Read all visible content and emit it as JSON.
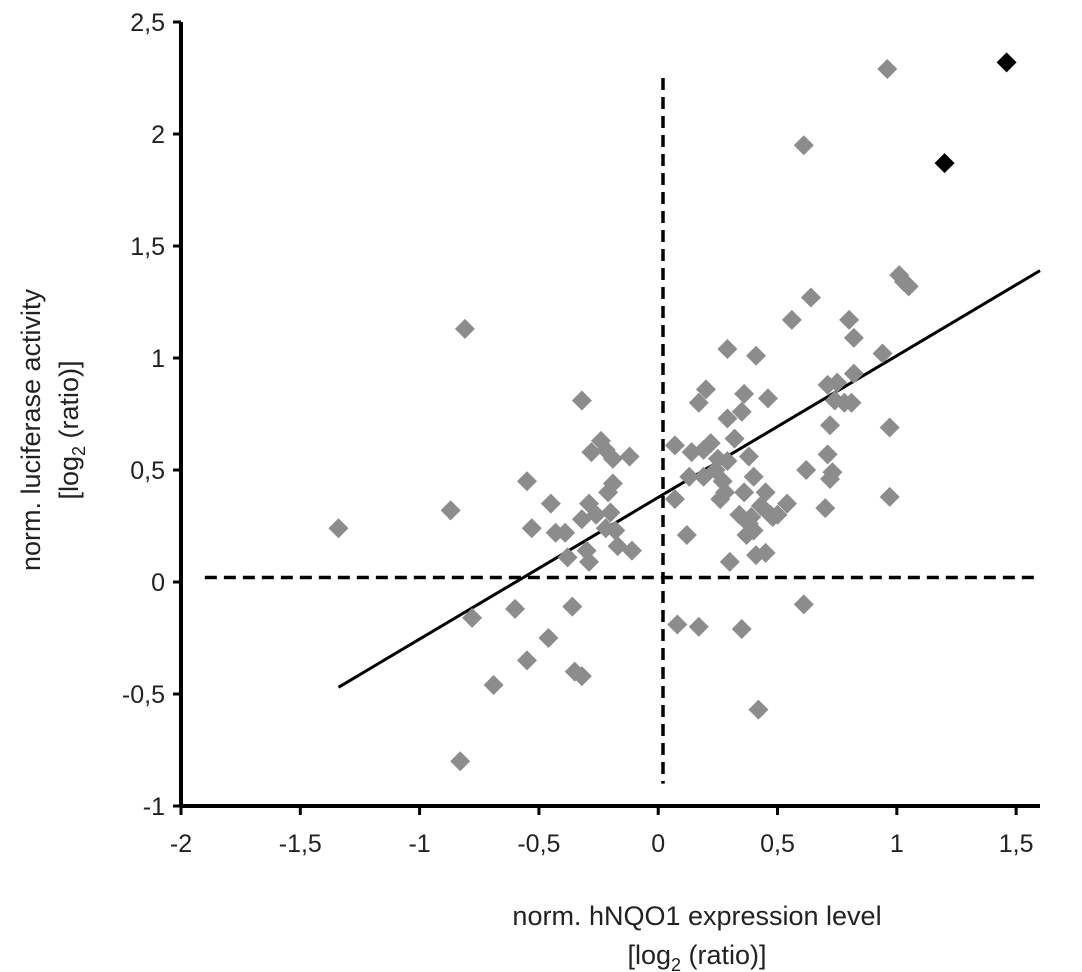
{
  "chart_data": {
    "type": "scatter",
    "xlabel_line1": "norm. hNQO1 expression level",
    "xlabel_line2_pre": "[log",
    "xlabel_line2_sub": "2",
    "xlabel_line2_post": " (ratio)]",
    "ylabel_line1": "norm. luciferase activity",
    "ylabel_line2_pre": "[log",
    "ylabel_line2_sub": "2",
    "ylabel_line2_post": " (ratio)]",
    "xlim": [
      -2,
      1.6
    ],
    "ylim": [
      -1,
      2.5
    ],
    "x_ticks": [
      -2,
      -1.5,
      -1,
      -0.5,
      0,
      0.5,
      1,
      1.5
    ],
    "x_tick_labels": [
      "-2",
      "-1,5",
      "-1",
      "-0,5",
      "0",
      "0,5",
      "1",
      "1,5"
    ],
    "y_ticks": [
      -1,
      -0.5,
      0,
      0.5,
      1,
      1.5,
      2,
      2.5
    ],
    "y_tick_labels": [
      "-1",
      "-0,5",
      "0",
      "0,5",
      "1",
      "1,5",
      "2",
      "2,5"
    ],
    "colors": {
      "grey_points": "#8c8c8c",
      "black_points": "#000000",
      "lines": "#000000"
    },
    "reference_lines": {
      "vertical": {
        "x": 0.02,
        "y_range": [
          -0.9,
          2.25
        ]
      },
      "horizontal": {
        "y": 0.02,
        "x_range": [
          -1.9,
          1.6
        ]
      }
    },
    "regression_line": {
      "x_start": -1.34,
      "y_start": -0.47,
      "x_end": 1.6,
      "y_end": 1.39
    },
    "series": [
      {
        "marker": "diamond",
        "color": "#8c8c8c",
        "points": [
          [
            -1.34,
            0.24
          ],
          [
            -0.87,
            0.32
          ],
          [
            -0.81,
            1.13
          ],
          [
            -0.78,
            -0.16
          ],
          [
            -0.83,
            -0.8
          ],
          [
            -0.69,
            -0.46
          ],
          [
            -0.6,
            -0.12
          ],
          [
            -0.55,
            -0.35
          ],
          [
            -0.55,
            0.45
          ],
          [
            -0.53,
            0.24
          ],
          [
            -0.46,
            -0.25
          ],
          [
            -0.45,
            0.35
          ],
          [
            -0.43,
            0.22
          ],
          [
            -0.39,
            0.22
          ],
          [
            -0.38,
            0.11
          ],
          [
            -0.36,
            -0.11
          ],
          [
            -0.35,
            -0.4
          ],
          [
            -0.32,
            -0.42
          ],
          [
            -0.32,
            0.81
          ],
          [
            -0.32,
            0.28
          ],
          [
            -0.3,
            0.14
          ],
          [
            -0.29,
            0.09
          ],
          [
            -0.29,
            0.35
          ],
          [
            -0.28,
            0.58
          ],
          [
            -0.26,
            0.3
          ],
          [
            -0.24,
            0.63
          ],
          [
            -0.22,
            0.59
          ],
          [
            -0.22,
            0.24
          ],
          [
            -0.21,
            0.4
          ],
          [
            -0.2,
            0.31
          ],
          [
            -0.19,
            0.44
          ],
          [
            -0.19,
            0.55
          ],
          [
            -0.18,
            0.23
          ],
          [
            -0.17,
            0.16
          ],
          [
            -0.12,
            0.56
          ],
          [
            -0.11,
            0.14
          ],
          [
            0.07,
            0.61
          ],
          [
            0.07,
            0.37
          ],
          [
            0.08,
            -0.19
          ],
          [
            0.12,
            0.21
          ],
          [
            0.13,
            0.47
          ],
          [
            0.14,
            0.58
          ],
          [
            0.17,
            -0.2
          ],
          [
            0.17,
            0.8
          ],
          [
            0.19,
            0.59
          ],
          [
            0.19,
            0.47
          ],
          [
            0.2,
            0.86
          ],
          [
            0.22,
            0.62
          ],
          [
            0.24,
            0.5
          ],
          [
            0.25,
            0.55
          ],
          [
            0.26,
            0.37
          ],
          [
            0.27,
            0.45
          ],
          [
            0.28,
            0.4
          ],
          [
            0.29,
            0.54
          ],
          [
            0.29,
            0.73
          ],
          [
            0.29,
            1.04
          ],
          [
            0.3,
            0.09
          ],
          [
            0.32,
            0.64
          ],
          [
            0.34,
            0.3
          ],
          [
            0.35,
            0.76
          ],
          [
            0.35,
            -0.21
          ],
          [
            0.36,
            0.84
          ],
          [
            0.36,
            0.4
          ],
          [
            0.37,
            0.21
          ],
          [
            0.38,
            0.26
          ],
          [
            0.38,
            0.56
          ],
          [
            0.39,
            0.29
          ],
          [
            0.4,
            0.23
          ],
          [
            0.4,
            0.47
          ],
          [
            0.41,
            0.12
          ],
          [
            0.41,
            1.01
          ],
          [
            0.42,
            -0.57
          ],
          [
            0.43,
            0.34
          ],
          [
            0.45,
            0.4
          ],
          [
            0.45,
            0.13
          ],
          [
            0.46,
            0.82
          ],
          [
            0.47,
            0.3
          ],
          [
            0.48,
            0.29
          ],
          [
            0.5,
            0.3
          ],
          [
            0.54,
            0.35
          ],
          [
            0.56,
            1.17
          ],
          [
            0.61,
            -0.1
          ],
          [
            0.61,
            1.95
          ],
          [
            0.62,
            0.5
          ],
          [
            0.64,
            1.27
          ],
          [
            0.7,
            0.33
          ],
          [
            0.71,
            0.57
          ],
          [
            0.71,
            0.88
          ],
          [
            0.72,
            0.46
          ],
          [
            0.72,
            0.7
          ],
          [
            0.73,
            0.49
          ],
          [
            0.74,
            0.81
          ],
          [
            0.75,
            0.89
          ],
          [
            0.78,
            0.8
          ],
          [
            0.8,
            1.17
          ],
          [
            0.82,
            1.09
          ],
          [
            0.81,
            0.8
          ],
          [
            0.82,
            0.93
          ],
          [
            0.94,
            1.02
          ],
          [
            0.96,
            2.29
          ],
          [
            0.97,
            0.38
          ],
          [
            0.97,
            0.69
          ],
          [
            1.01,
            1.37
          ],
          [
            1.03,
            1.34
          ],
          [
            1.05,
            1.32
          ]
        ]
      },
      {
        "marker": "diamond",
        "color": "#000000",
        "points": [
          [
            1.2,
            1.87
          ],
          [
            1.46,
            2.32
          ]
        ]
      }
    ]
  }
}
